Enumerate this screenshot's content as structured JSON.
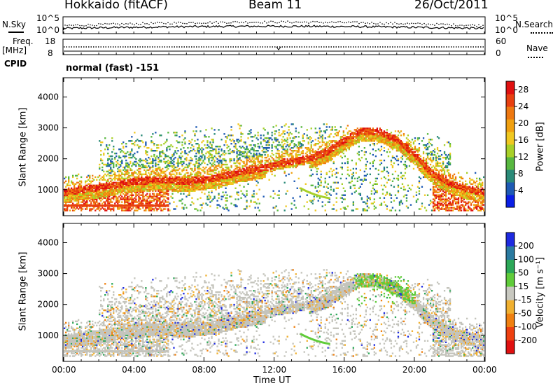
{
  "header": {
    "station": "Hokkaido (fitACF)",
    "beam": "Beam 11",
    "date": "26/Oct/2011"
  },
  "top_panels": {
    "nsky_label": "N.Sky",
    "nsearch_label": "N.Search",
    "noise_ticks_left": [
      "10^5",
      "10^0"
    ],
    "noise_ticks_right": [
      "10^5",
      "10^0"
    ],
    "freq_label": "Freq.",
    "freq_unit": "[MHz]",
    "freq_ticks": [
      "18",
      "8"
    ],
    "nave_label": "Nave",
    "nave_ticks": [
      "60",
      "0"
    ],
    "cpid_label": "CPID",
    "cpid_value": "normal (fast) -151"
  },
  "chart_data": [
    {
      "type": "heatmap",
      "title": "",
      "xlabel": "Time UT",
      "ylabel": "Slant Range [km]",
      "x_ticks": [
        "00:00",
        "04:00",
        "08:00",
        "12:00",
        "16:00",
        "20:00",
        "00:00"
      ],
      "y_ticks": [
        1000,
        2000,
        3000,
        4000
      ],
      "xlim_hours": [
        0,
        24
      ],
      "ylim_km": [
        180,
        4600
      ],
      "colorbar": {
        "label": "Power [dB]",
        "ticks": [
          4,
          8,
          12,
          16,
          20,
          24,
          28
        ],
        "range": [
          0,
          30
        ],
        "colors": [
          "#0a1ee6",
          "#1e5ab4",
          "#2a8a78",
          "#58b840",
          "#a8d028",
          "#f0c820",
          "#f0a010",
          "#ee7810",
          "#e84010",
          "#e01010"
        ]
      },
      "bands": [
        {
          "t": [
            0.0,
            1.0,
            2.5,
            4.0,
            5.5,
            7.0,
            8.5,
            10.0,
            11.5,
            12.5,
            13.5
          ],
          "range_km": [
            900,
            980,
            1100,
            1250,
            1300,
            1250,
            1350,
            1550,
            1700,
            1850,
            1950
          ],
          "level": "high"
        },
        {
          "t": [
            14.0,
            15.0,
            16.0,
            17.0,
            18.0,
            19.0,
            20.0,
            21.0,
            22.0,
            23.0,
            24.0
          ],
          "range_km": [
            2000,
            2200,
            2600,
            2900,
            2850,
            2600,
            2100,
            1500,
            1200,
            1000,
            900
          ],
          "level": "high"
        }
      ]
    },
    {
      "type": "heatmap",
      "title": "",
      "xlabel": "Time UT",
      "ylabel": "Slant Range [km]",
      "x_ticks": [
        "00:00",
        "04:00",
        "08:00",
        "12:00",
        "16:00",
        "20:00",
        "00:00"
      ],
      "y_ticks": [
        1000,
        2000,
        3000,
        4000
      ],
      "xlim_hours": [
        0,
        24
      ],
      "ylim_km": [
        180,
        4600
      ],
      "colorbar": {
        "label": "Velocity [m s⁻¹]",
        "ticks": [
          200,
          100,
          50,
          15,
          -15,
          -50,
          -100,
          -200
        ],
        "colors": [
          "#1e2ae0",
          "#2a7aa0",
          "#2ca858",
          "#60cc3a",
          "#c8c8c0",
          "#f0b030",
          "#f08010",
          "#ee4010",
          "#e01010"
        ]
      },
      "dominant_value": "ground scatter (grey, ~0 m/s)"
    }
  ],
  "colors": {
    "grey_scatter": "#c4c4bc",
    "echo_low": "#1e5ab4",
    "echo_high": "#e83010"
  }
}
